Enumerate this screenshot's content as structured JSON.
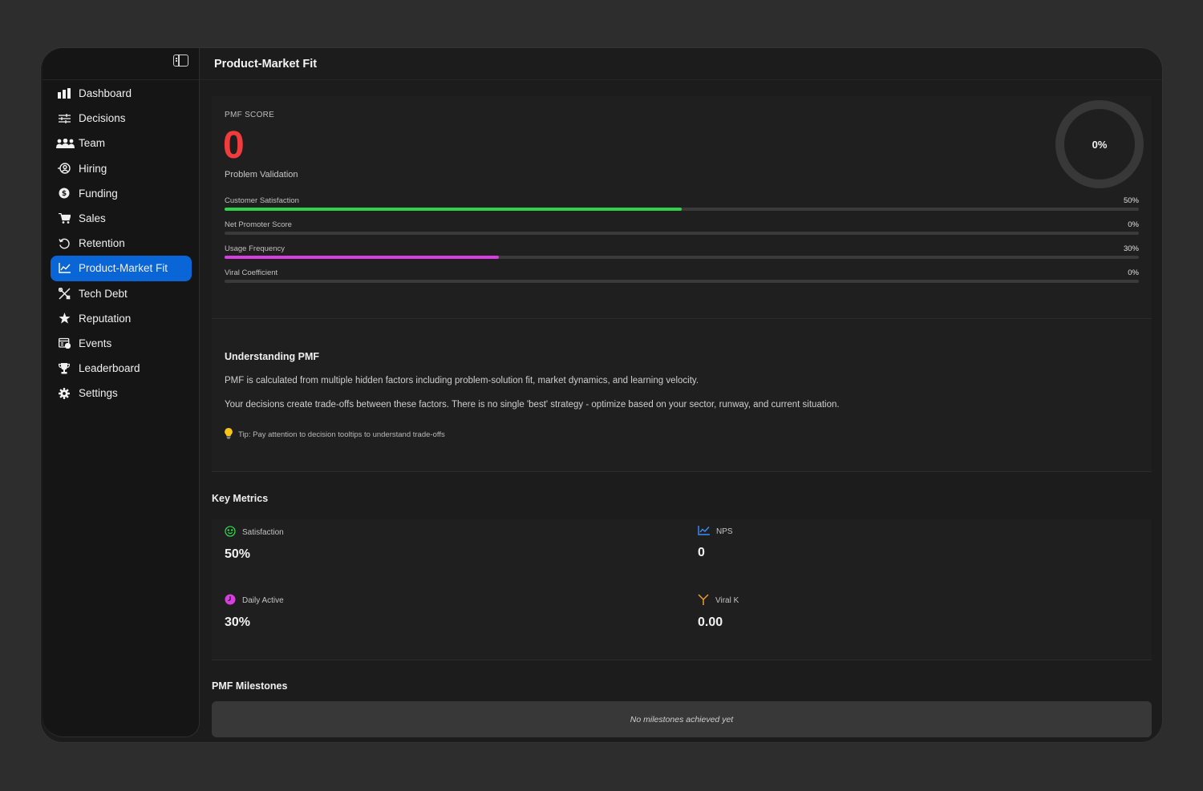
{
  "app": {
    "page_title": "Product-Market Fit"
  },
  "sidebar": {
    "items": [
      {
        "label": "Dashboard",
        "icon": "bar-chart-icon"
      },
      {
        "label": "Decisions",
        "icon": "sliders-icon"
      },
      {
        "label": "Team",
        "icon": "team-icon"
      },
      {
        "label": "Hiring",
        "icon": "hiring-icon"
      },
      {
        "label": "Funding",
        "icon": "dollar-icon"
      },
      {
        "label": "Sales",
        "icon": "cart-icon"
      },
      {
        "label": "Retention",
        "icon": "refresh-icon"
      },
      {
        "label": "Product-Market Fit",
        "icon": "trend-icon",
        "active": true
      },
      {
        "label": "Tech Debt",
        "icon": "tools-icon"
      },
      {
        "label": "Reputation",
        "icon": "star-icon"
      },
      {
        "label": "Events",
        "icon": "calendar-icon"
      },
      {
        "label": "Leaderboard",
        "icon": "trophy-icon"
      },
      {
        "label": "Settings",
        "icon": "gear-icon"
      }
    ]
  },
  "pmf": {
    "label": "PMF SCORE",
    "score": "0",
    "stage": "Problem Validation",
    "ring_value": "0%",
    "bars": [
      {
        "name": "Customer Satisfaction",
        "value": "50%",
        "fraction": 0.5,
        "color": "#2fd24a"
      },
      {
        "name": "Net Promoter Score",
        "value": "0%",
        "fraction": 0,
        "color": "#3a8dff"
      },
      {
        "name": "Usage Frequency",
        "value": "30%",
        "fraction": 0.3,
        "color": "#d63ee0"
      },
      {
        "name": "Viral Coefficient",
        "value": "0%",
        "fraction": 0,
        "color": "#f39c2b"
      }
    ]
  },
  "understanding": {
    "title": "Understanding PMF",
    "p1": "PMF is calculated from multiple hidden factors including problem-solution fit, market dynamics, and learning velocity.",
    "p2": "Your decisions create trade-offs between these factors. There is no single 'best' strategy - optimize based on your sector, runway, and current situation.",
    "tip": "Tip: Pay attention to decision tooltips to understand trade-offs"
  },
  "key_metrics": {
    "title": "Key Metrics",
    "items": [
      {
        "label": "Satisfaction",
        "value": "50%",
        "icon": "smile-icon",
        "color": "#2fd24a"
      },
      {
        "label": "NPS",
        "value": "0",
        "icon": "trend-icon",
        "color": "#3a8dff"
      },
      {
        "label": "Daily Active",
        "value": "30%",
        "icon": "clock-icon",
        "color": "#d63ee0"
      },
      {
        "label": "Viral K",
        "value": "0.00",
        "icon": "branch-icon",
        "color": "#f39c2b"
      }
    ]
  },
  "milestones": {
    "title": "PMF Milestones",
    "empty": "No milestones achieved yet"
  }
}
